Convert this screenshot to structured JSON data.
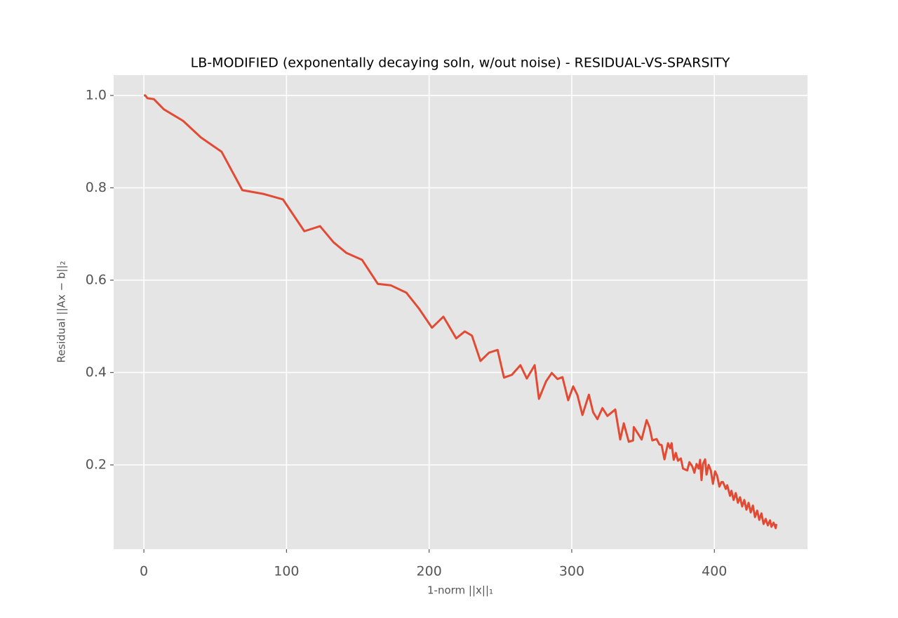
{
  "chart_data": {
    "type": "line",
    "title": "LB-MODIFIED (exponentally decaying soln, w/out noise) - RESIDUAL-VS-SPARSITY",
    "x_label": "1-norm ||x||₁",
    "y_label": "Residual ||Ax − b||₂",
    "color": "#e24a33",
    "grid": true,
    "xlim": [
      -21.2,
      465.3
    ],
    "ylim": [
      0.0175,
      1.044
    ],
    "xticks": [
      0,
      100,
      200,
      300,
      400
    ],
    "yticks": [
      0.2,
      0.4,
      0.6,
      0.8,
      {
        "value": 1,
        "label": "1.0"
      }
    ],
    "x": [
      0,
      1,
      2.5,
      7,
      14,
      27.5,
      40,
      54.5,
      69,
      83.5,
      97.5,
      112.5,
      123.5,
      133,
      142,
      153,
      164,
      173,
      184,
      193,
      202,
      210,
      219,
      225,
      230,
      236,
      242,
      248,
      252.5,
      258,
      264,
      268.5,
      274,
      277,
      282,
      286,
      290,
      293.5,
      297.5,
      301,
      304,
      307.5,
      312,
      315,
      318,
      321.5,
      325,
      330.5,
      334,
      336.5,
      340,
      343,
      343.5,
      349,
      352.5,
      354.5,
      356.5,
      359.5,
      361.5,
      363,
      365,
      367.5,
      369,
      370,
      371.5,
      373,
      374.5,
      376.5,
      378,
      381,
      382.5,
      384.5,
      386,
      387.5,
      389,
      390,
      391,
      392,
      393.5,
      394.5,
      396,
      397.5,
      399,
      400.5,
      402,
      403.5,
      405,
      406,
      408,
      409,
      411,
      412,
      413.5,
      415,
      416.5,
      418,
      419.5,
      421,
      422.5,
      424,
      425.5,
      427,
      428.5,
      430,
      431.5,
      433,
      434.5,
      436,
      437.5,
      439,
      440,
      441.5,
      443,
      443.5
    ],
    "values": [
      1.0,
      1.0,
      0.994,
      0.992,
      0.97,
      0.945,
      0.909,
      0.878,
      0.795,
      0.787,
      0.775,
      0.706,
      0.717,
      0.682,
      0.659,
      0.644,
      0.592,
      0.589,
      0.573,
      0.538,
      0.497,
      0.521,
      0.474,
      0.489,
      0.48,
      0.425,
      0.443,
      0.449,
      0.389,
      0.395,
      0.416,
      0.387,
      0.416,
      0.343,
      0.381,
      0.399,
      0.386,
      0.39,
      0.34,
      0.37,
      0.351,
      0.308,
      0.352,
      0.314,
      0.299,
      0.323,
      0.306,
      0.32,
      0.255,
      0.29,
      0.25,
      0.253,
      0.282,
      0.255,
      0.297,
      0.282,
      0.253,
      0.256,
      0.244,
      0.243,
      0.212,
      0.247,
      0.236,
      0.247,
      0.211,
      0.226,
      0.209,
      0.214,
      0.192,
      0.188,
      0.206,
      0.197,
      0.183,
      0.202,
      0.192,
      0.211,
      0.167,
      0.202,
      0.212,
      0.179,
      0.2,
      0.188,
      0.159,
      0.186,
      0.176,
      0.153,
      0.163,
      0.163,
      0.148,
      0.156,
      0.133,
      0.144,
      0.124,
      0.139,
      0.118,
      0.13,
      0.11,
      0.124,
      0.103,
      0.118,
      0.097,
      0.112,
      0.087,
      0.101,
      0.081,
      0.095,
      0.072,
      0.083,
      0.069,
      0.08,
      0.066,
      0.075,
      0.063,
      0.072
    ]
  }
}
